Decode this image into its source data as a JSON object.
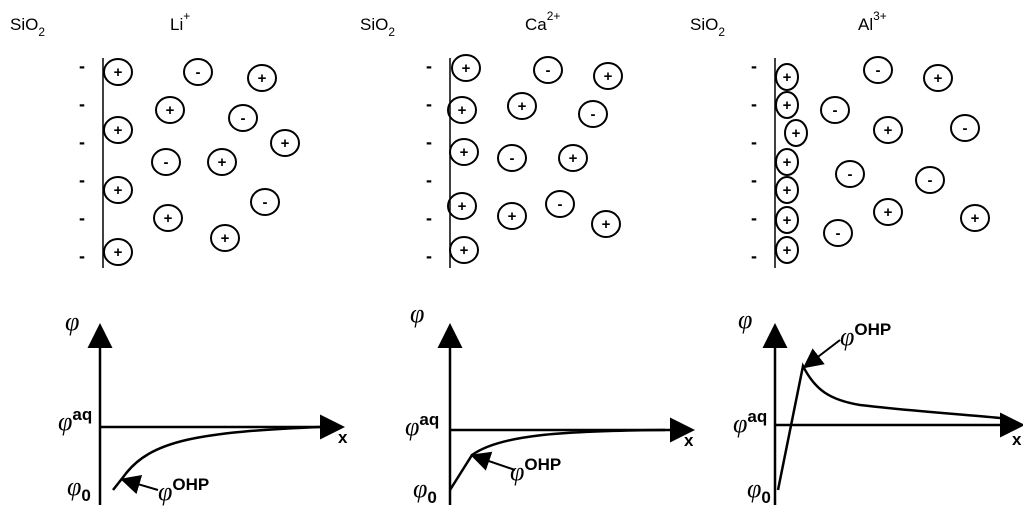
{
  "panels": [
    {
      "substrate": {
        "base": "SiO",
        "sub": "2"
      },
      "cation": {
        "base": "Li",
        "sup": "+"
      },
      "wall_charges": [
        "-",
        "-",
        "-",
        "-",
        "-",
        "-"
      ],
      "ions": [
        "+",
        "-",
        "+",
        "+",
        "-",
        "+",
        "+",
        "-",
        "+",
        "+",
        "-",
        "+",
        "+",
        "+"
      ],
      "graph": {
        "y_label": "φ",
        "aq": {
          "base": "φ",
          "sup": "aq"
        },
        "zero": {
          "base": "φ",
          "sub": "0"
        },
        "ohp": {
          "base": "φ",
          "sup": "OHP"
        },
        "x_label": "x"
      }
    },
    {
      "substrate": {
        "base": "SiO",
        "sub": "2"
      },
      "cation": {
        "base": "Ca",
        "sup": "2+"
      },
      "wall_charges": [
        "-",
        "-",
        "-",
        "-",
        "-",
        "-"
      ],
      "ions": [
        "+",
        "-",
        "+",
        "+",
        "+",
        "-",
        "+",
        "-",
        "+",
        "+",
        "+",
        "-",
        "+",
        "+"
      ],
      "graph": {
        "y_label": "φ",
        "aq": {
          "base": "φ",
          "sup": "aq"
        },
        "zero": {
          "base": "φ",
          "sub": "0"
        },
        "ohp": {
          "base": "φ",
          "sup": "OHP"
        },
        "x_label": "x"
      }
    },
    {
      "substrate": {
        "base": "SiO",
        "sub": "2"
      },
      "cation": {
        "base": "Al",
        "sup": "3+"
      },
      "wall_charges": [
        "-",
        "-",
        "-",
        "-",
        "-",
        "-"
      ],
      "ions": [
        "+",
        "+",
        "+",
        "+",
        "+",
        "+",
        "+",
        "-",
        "+",
        "-",
        "+",
        "-",
        "-",
        "-",
        "+",
        "+",
        "-"
      ],
      "graph": {
        "y_label": "φ",
        "aq": {
          "base": "φ",
          "sup": "aq"
        },
        "zero": {
          "base": "φ",
          "sub": "0"
        },
        "ohp": {
          "base": "φ",
          "sup": "OHP"
        },
        "x_label": "x"
      }
    }
  ]
}
